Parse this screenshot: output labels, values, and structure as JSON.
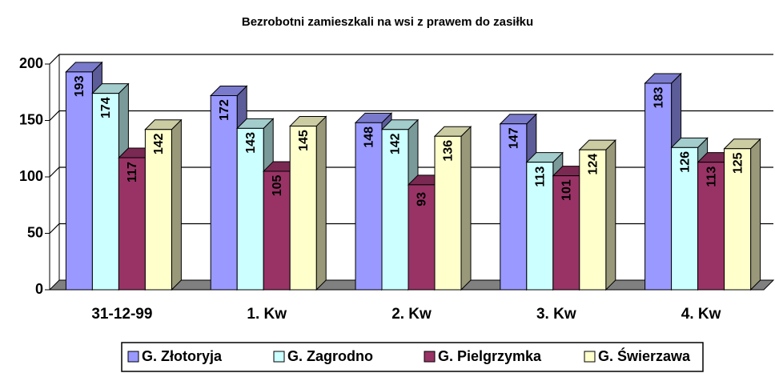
{
  "chart_data": {
    "type": "bar3d",
    "title": "Bezrobotni zamieszkali na wsi z prawem do zasiłku",
    "categories": [
      "31-12-99",
      "1. Kw",
      "2. Kw",
      "3. Kw",
      "4. Kw"
    ],
    "series": [
      {
        "name": "G. Złotoryja",
        "color": "#9999ff",
        "values": [
          193,
          172,
          148,
          147,
          183
        ]
      },
      {
        "name": "G. Zagrodno",
        "color": "#ccffff",
        "values": [
          174,
          143,
          142,
          113,
          126
        ]
      },
      {
        "name": "G. Pielgrzymka",
        "color": "#993366",
        "values": [
          117,
          105,
          93,
          101,
          113
        ]
      },
      {
        "name": "G. Świerzawa",
        "color": "#ffffcc",
        "values": [
          142,
          145,
          136,
          124,
          125
        ]
      }
    ],
    "ylim": [
      0,
      200
    ],
    "yticks": [
      0,
      50,
      100,
      150,
      200
    ],
    "grid": true,
    "legend": "bottom"
  }
}
